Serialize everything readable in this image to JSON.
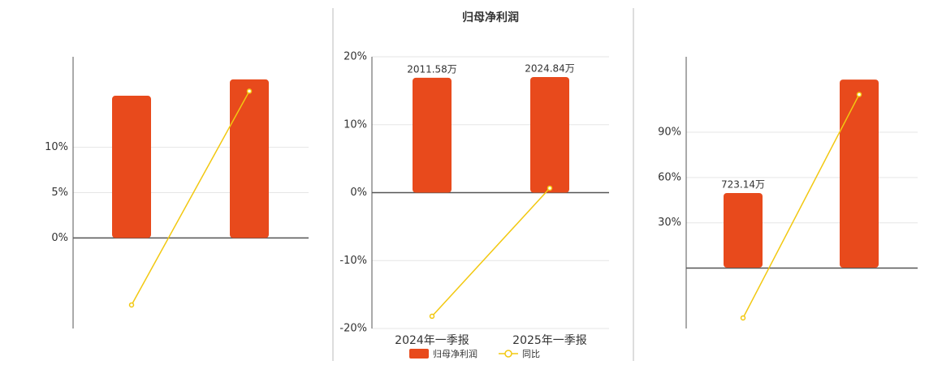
{
  "chart_data": [
    {
      "type": "bar",
      "categories": [
        null,
        null
      ],
      "ylim": [
        -10,
        20
      ],
      "yticks": [
        {
          "value": 0,
          "label": "0%"
        },
        {
          "value": 5,
          "label": "5%"
        },
        {
          "value": 10,
          "label": "10%"
        }
      ],
      "grid": true,
      "series": [
        {
          "color": "#e84a1c",
          "values": [
            15.7,
            17.5
          ]
        },
        {
          "type": "line",
          "color": "#f2c811",
          "values": [
            -7.4,
            16.2
          ]
        }
      ]
    },
    {
      "type": "bar",
      "title": "归母净利润",
      "categories": [
        "2024年一季报",
        "2025年一季报"
      ],
      "ylim": [
        -20,
        20
      ],
      "yticks": [
        {
          "value": -20,
          "label": "-20%"
        },
        {
          "value": -10,
          "label": "-10%"
        },
        {
          "value": 0,
          "label": "0%"
        },
        {
          "value": 10,
          "label": "10%"
        },
        {
          "value": 20,
          "label": "20%"
        }
      ],
      "y2lim": [
        -2380,
        2380
      ],
      "grid": true,
      "legend": "bottom",
      "series": [
        {
          "name": "归母净利润",
          "axis": "y2",
          "color": "#e84a1c",
          "values": [
            2011.58,
            2024.84
          ],
          "value_labels": [
            "2011.58万",
            "2024.84万"
          ]
        },
        {
          "name": "同比",
          "type": "line",
          "color": "#f2c811",
          "values": [
            -18.2,
            0.66
          ]
        }
      ]
    },
    {
      "type": "bar",
      "categories": [
        null,
        null
      ],
      "ylim": [
        -40,
        140
      ],
      "yticks": [
        {
          "value": 30,
          "label": "30%"
        },
        {
          "value": 60,
          "label": "60%"
        },
        {
          "value": 90,
          "label": "90%"
        }
      ],
      "y2lim": [
        -590,
        2044
      ],
      "grid": true,
      "series": [
        {
          "axis": "y2",
          "color": "#e84a1c",
          "values": [
            723.14,
            1823
          ],
          "value_labels": [
            "723.14万",
            null
          ]
        },
        {
          "type": "line",
          "color": "#f2c811",
          "values": [
            -33,
            115
          ]
        }
      ]
    }
  ]
}
